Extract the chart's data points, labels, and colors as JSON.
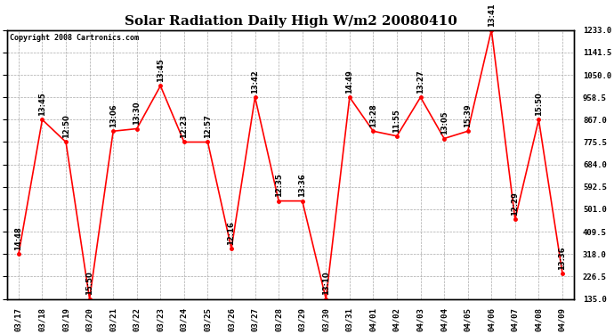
{
  "title": "Solar Radiation Daily High W/m2 20080410",
  "copyright": "Copyright 2008 Cartronics.com",
  "dates": [
    "03/17",
    "03/18",
    "03/19",
    "03/20",
    "03/21",
    "03/22",
    "03/23",
    "03/24",
    "03/25",
    "03/26",
    "03/27",
    "03/28",
    "03/29",
    "03/30",
    "03/31",
    "04/01",
    "04/02",
    "04/03",
    "04/04",
    "04/05",
    "04/06",
    "04/07",
    "04/08",
    "04/09"
  ],
  "values": [
    318,
    867,
    775.5,
    135,
    820,
    830,
    1005,
    775.5,
    775.5,
    340,
    958.5,
    535,
    535,
    135,
    958.5,
    820,
    800,
    958.5,
    790,
    820,
    1233,
    460,
    867,
    240
  ],
  "annotations": [
    "14:48",
    "13:45",
    "12:50",
    "15:50",
    "13:06",
    "13:30",
    "13:45",
    "12:23",
    "12:57",
    "12:16",
    "13:42",
    "12:35",
    "13:36",
    "13:10",
    "14:49",
    "13:28",
    "11:55",
    "13:27",
    "13:05",
    "15:39",
    "13:41",
    "12:29",
    "15:50",
    "13:36"
  ],
  "ylim": [
    135,
    1233
  ],
  "yticks": [
    135.0,
    226.5,
    318.0,
    409.5,
    501.0,
    592.5,
    684.0,
    775.5,
    867.0,
    958.5,
    1050.0,
    1141.5,
    1233.0
  ],
  "line_color": "#FF0000",
  "marker_color": "#FF0000",
  "bg_color": "#FFFFFF",
  "grid_color": "#AAAAAA",
  "title_fontsize": 11,
  "annotation_fontsize": 6,
  "tick_fontsize": 6.5,
  "copyright_fontsize": 6
}
